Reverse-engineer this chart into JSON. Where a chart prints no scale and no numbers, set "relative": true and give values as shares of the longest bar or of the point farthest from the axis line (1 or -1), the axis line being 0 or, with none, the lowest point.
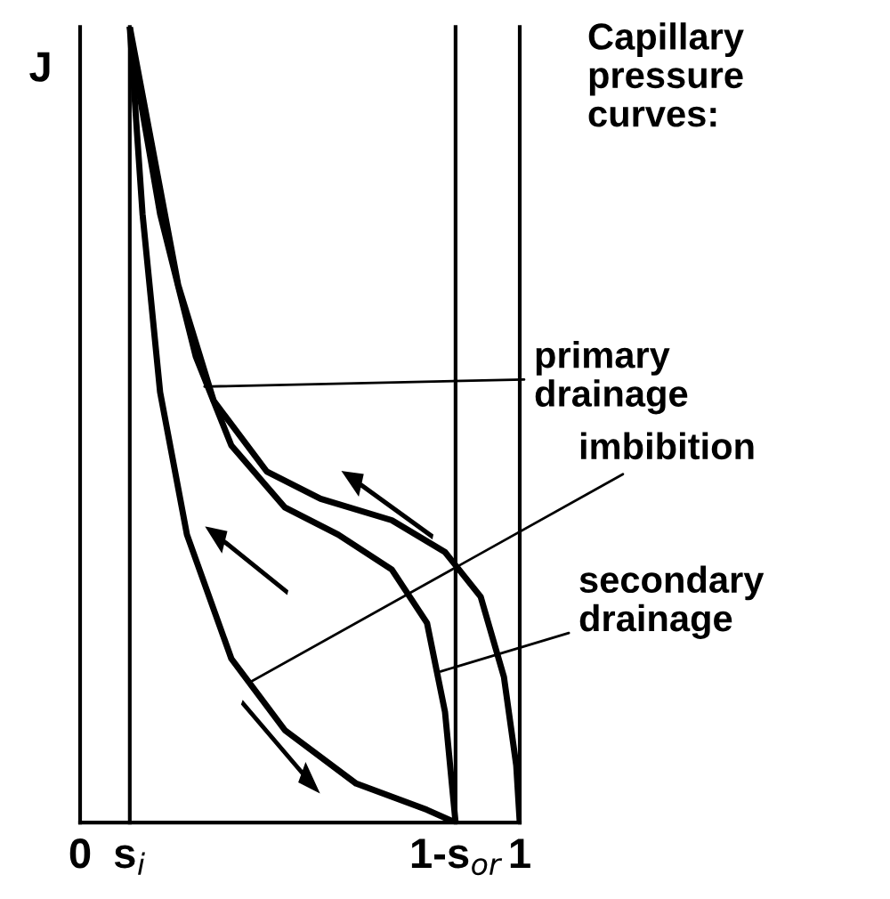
{
  "chart_data": {
    "type": "line",
    "relative": true,
    "title": "Capillary\npressure\ncurves:",
    "ylabel": "J",
    "xlim": [
      0,
      1
    ],
    "xticks": [
      0,
      {
        "value": 0.113,
        "label": "s$_{i}$"
      },
      {
        "value": 0.854,
        "label": "1-s$_{or}$"
      },
      1
    ],
    "ref_lines": [
      {
        "axis": "x",
        "value": 0.113,
        "color": "#000000"
      },
      {
        "axis": "x",
        "value": 0.854,
        "color": "#000000"
      }
    ],
    "series": [
      {
        "color": "#000000",
        "x": [
          0.113,
          0.223,
          0.304,
          0.425,
          0.547,
          0.709,
          0.83,
          0.911,
          0.964,
          0.992,
          1.0
        ],
        "values": [
          1.0,
          0.676,
          0.53,
          0.441,
          0.407,
          0.38,
          0.34,
          0.284,
          0.183,
          0.072,
          0
        ]
      },
      {
        "color": "#000000",
        "x": [
          0.113,
          0.142,
          0.182,
          0.243,
          0.344,
          0.466,
          0.628,
          0.789,
          0.854
        ],
        "values": [
          1.0,
          0.765,
          0.541,
          0.362,
          0.206,
          0.116,
          0.049,
          0.016,
          0
        ]
      },
      {
        "color": "#000000",
        "x": [
          0.118,
          0.182,
          0.263,
          0.344,
          0.466,
          0.587,
          0.709,
          0.789,
          0.83,
          0.854
        ],
        "values": [
          0.97,
          0.765,
          0.586,
          0.474,
          0.396,
          0.362,
          0.318,
          0.251,
          0.139,
          0
        ]
      }
    ],
    "annotations": [
      {
        "text": "primary\ndrainage",
        "x": 0.283,
        "y": 0.548
      },
      {
        "text": "imbibition",
        "x": 0.385,
        "y": 0.176
      },
      {
        "text": "secondary\ndrainage",
        "x": 0.82,
        "y": 0.19
      }
    ],
    "marker": "none",
    "line_style": "solid"
  }
}
